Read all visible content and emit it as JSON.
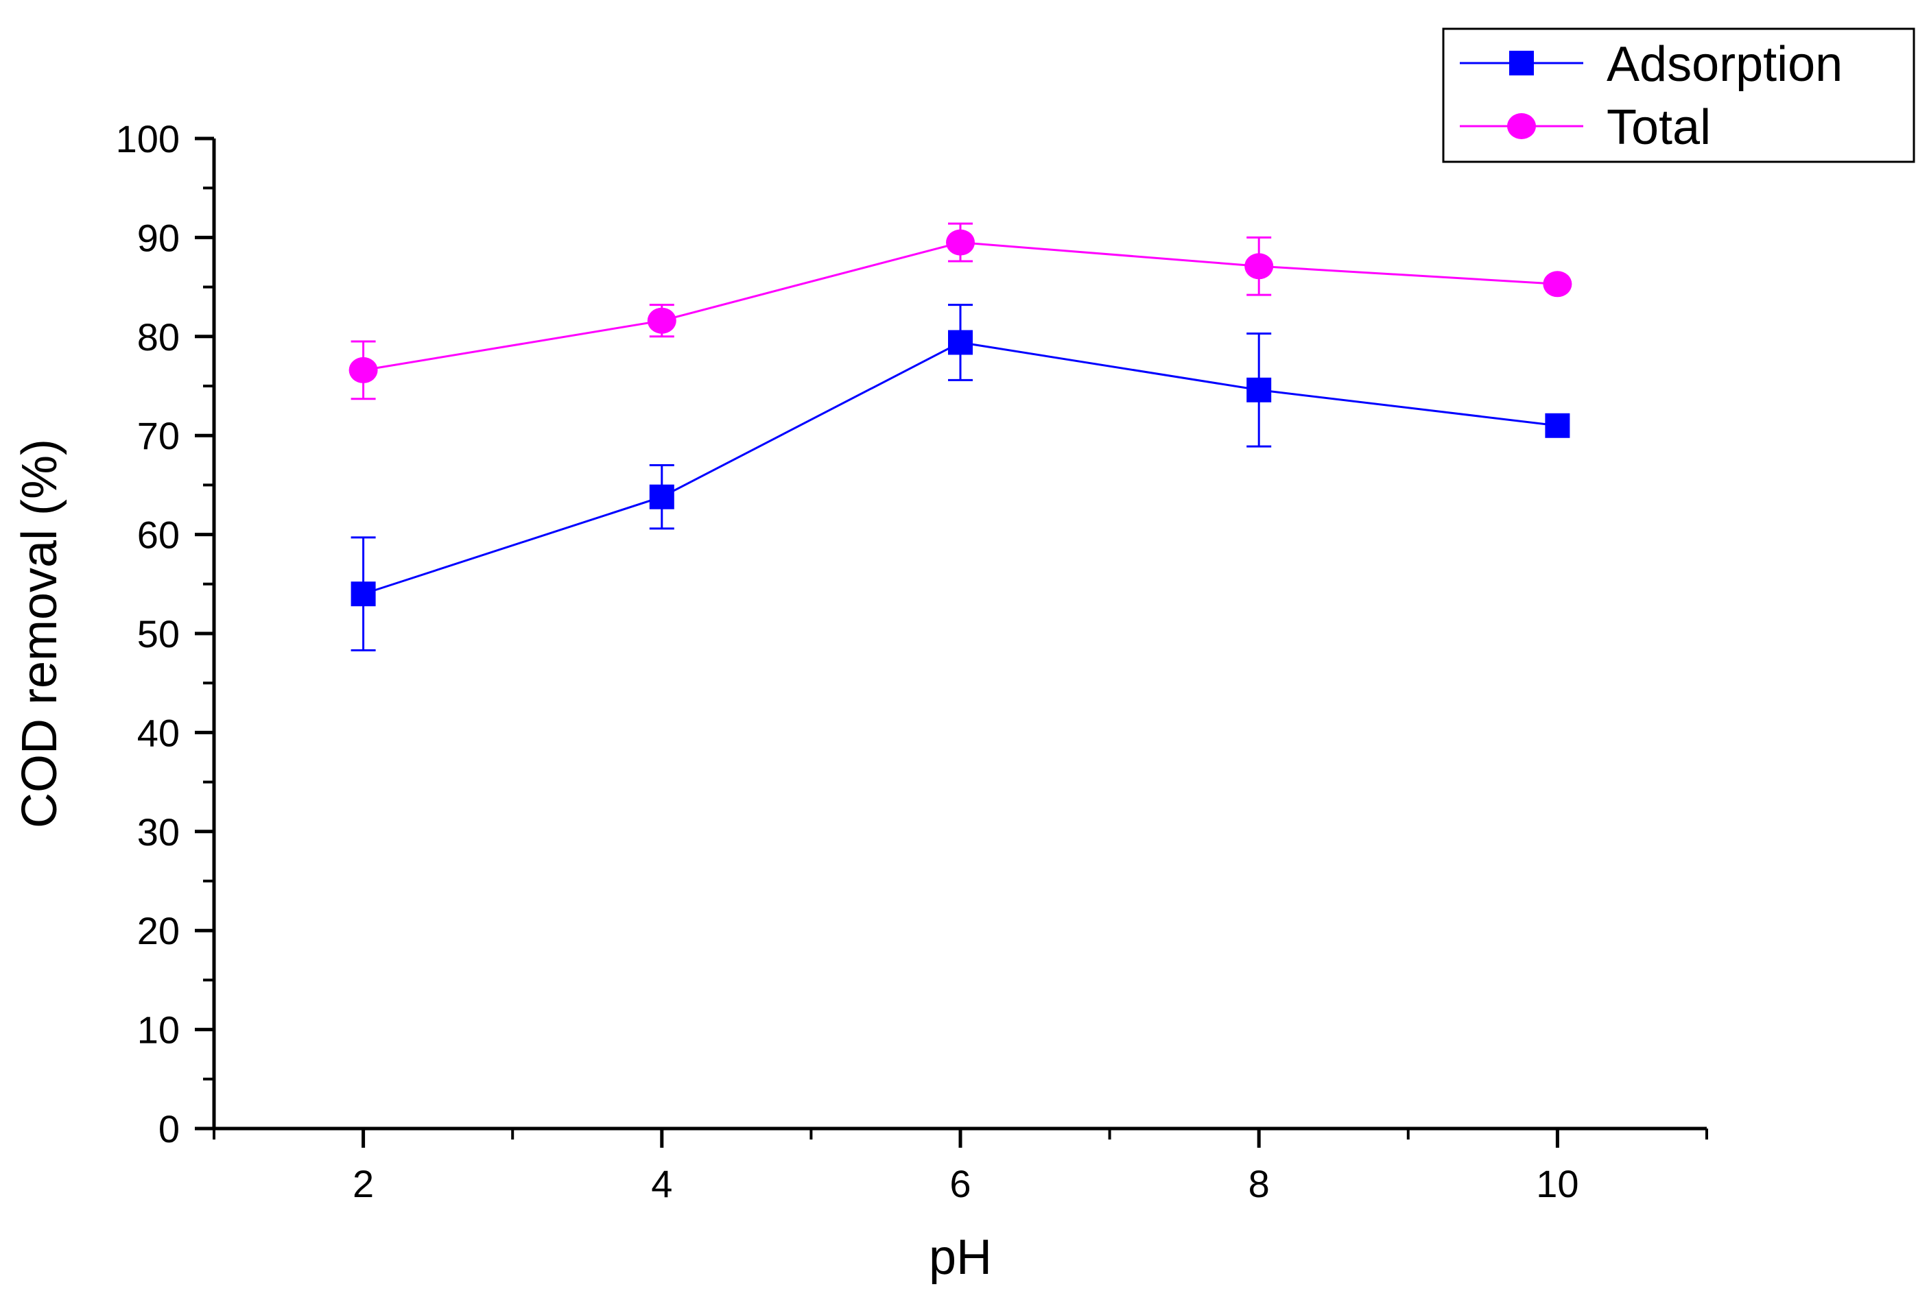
{
  "chart_data": {
    "type": "line",
    "title": "",
    "xlabel": "pH",
    "ylabel": "COD removal (%)",
    "xlim": [
      1,
      11
    ],
    "ylim": [
      0,
      100
    ],
    "x_ticks": [
      2,
      4,
      6,
      8,
      10
    ],
    "y_ticks": [
      0,
      10,
      20,
      30,
      40,
      50,
      60,
      70,
      80,
      90,
      100
    ],
    "x": [
      2,
      4,
      6,
      8,
      10
    ],
    "grid": false,
    "legend_position": "top-right",
    "series": [
      {
        "name": "Adsorption",
        "color": "#0000ff",
        "marker": "square",
        "values": [
          54,
          63.8,
          79.4,
          74.6,
          71
        ],
        "error": [
          5.7,
          3.2,
          3.8,
          5.7,
          0
        ]
      },
      {
        "name": "Total",
        "color": "#ff00ff",
        "marker": "circle",
        "values": [
          76.6,
          81.6,
          89.5,
          87.1,
          85.3
        ],
        "error": [
          2.9,
          1.6,
          1.9,
          2.9,
          0
        ]
      }
    ]
  }
}
